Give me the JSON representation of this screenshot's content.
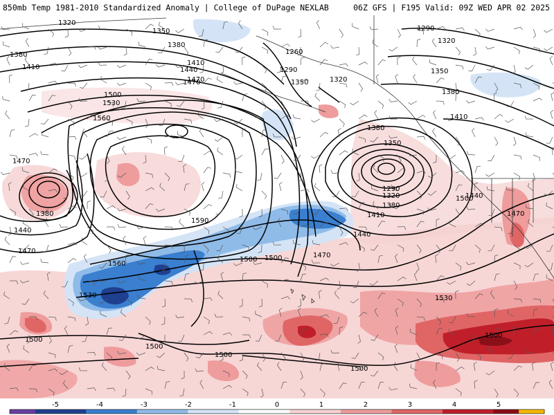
{
  "title": {
    "left": "850mb Temp 1981-2010 Standardized Anomaly | College of DuPage NEXLAB",
    "right": "06Z GFS | F195 Valid: 09Z WED APR 02 2025"
  },
  "colors": {
    "neg5": "#6b3fa0",
    "neg4": "#1f3f8f",
    "neg3": "#3a7fd0",
    "neg2": "#8fbbe8",
    "neg1": "#d4e4f6",
    "zero": "#ffffff",
    "pos1": "#f6d2d2",
    "pos2": "#ee9c9c",
    "pos3": "#e06666",
    "pos4": "#c01f2a",
    "pos5": "#8a0f18",
    "top": "#f5b800",
    "contour": "#000000",
    "coast": "#333333"
  },
  "colorbar": {
    "ticks": [
      "-5",
      "-4",
      "-3",
      "-2",
      "-1",
      "0",
      "1",
      "2",
      "3",
      "4",
      "5"
    ]
  },
  "height_contours_dam": {
    "labels": [
      "1320",
      "1350",
      "1380",
      "1410",
      "1440",
      "1470",
      "1500",
      "1530",
      "1560",
      "1590",
      "1260",
      "1290",
      "1320",
      "1350",
      "1380",
      "1410",
      "1290",
      "1290",
      "1320",
      "1350",
      "1380",
      "1410",
      "1440",
      "1470",
      "1500",
      "1530",
      "1500",
      "1500",
      "1500",
      "1500",
      "1500",
      "1500",
      "1470",
      "1440",
      "1380",
      "1470",
      "1380",
      "1410",
      "1440",
      "1470",
      "1500",
      "1530",
      "1560",
      "1470",
      "1320",
      "1380",
      "1350"
    ]
  }
}
